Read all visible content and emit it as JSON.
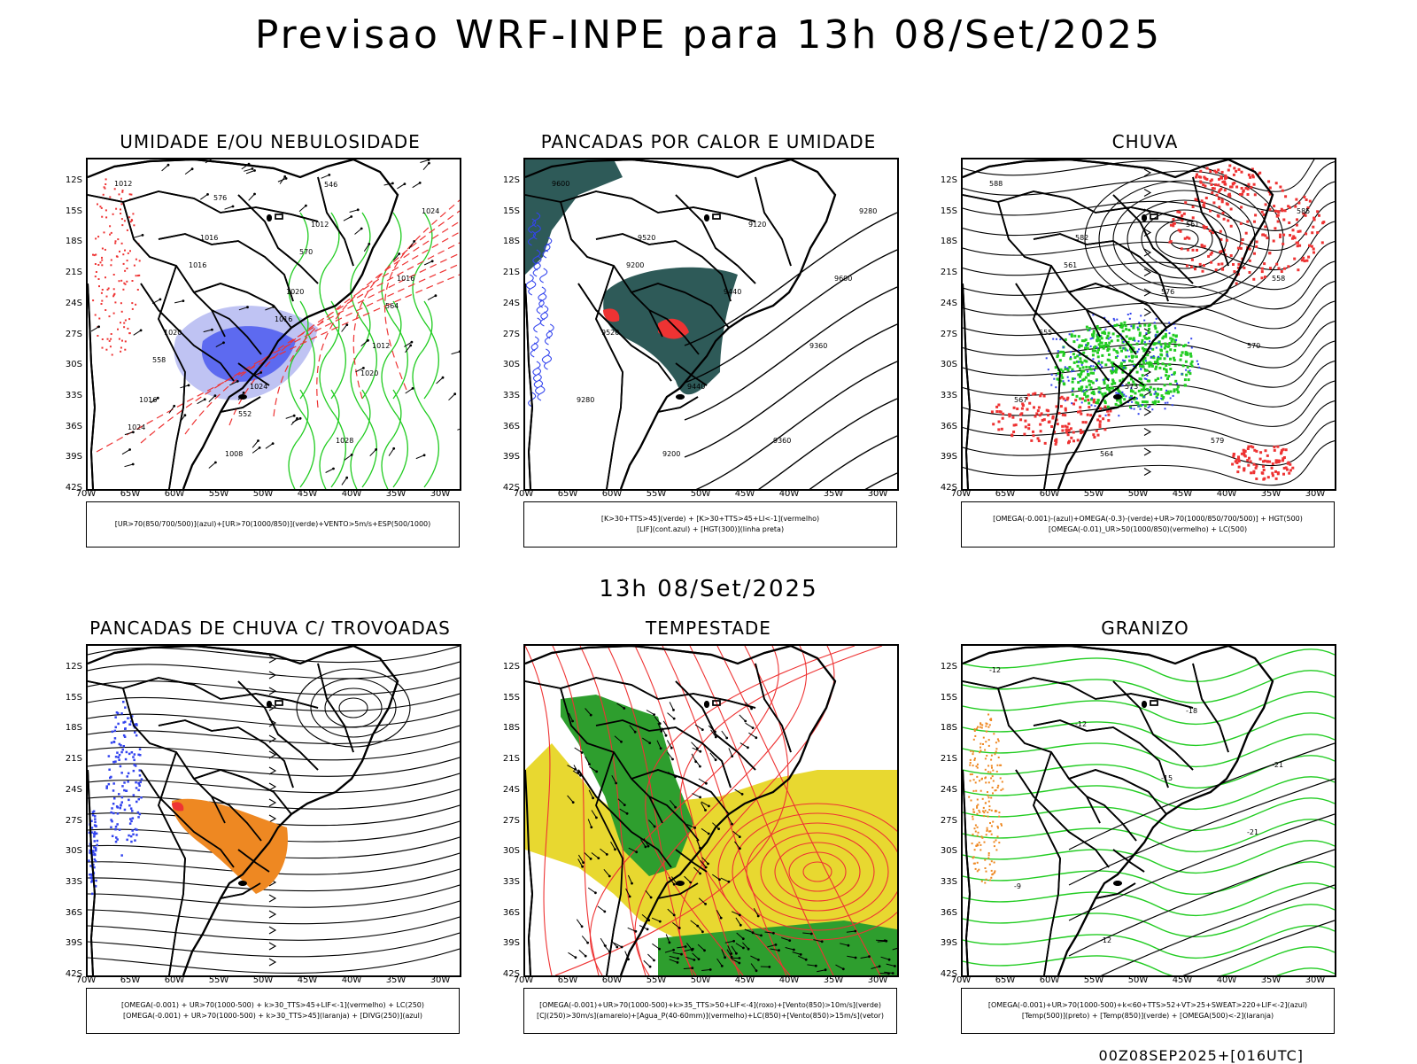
{
  "title": "Previsao WRF-INPE  para 13h 08/Set/2025",
  "mid_time": "13h 08/Set/2025",
  "footer_code": "00Z08SEP2025+[016UTC]",
  "lat_labels": [
    "12S",
    "15S",
    "18S",
    "21S",
    "24S",
    "27S",
    "30S",
    "33S",
    "36S",
    "39S",
    "42S"
  ],
  "lon_labels": [
    "70W",
    "65W",
    "60W",
    "55W",
    "50W",
    "45W",
    "40W",
    "35W",
    "30W"
  ],
  "panels": [
    {
      "title": "UMIDADE E/OU NEBULOSIDADE",
      "legend": [
        "[UR>70(850/700/500)](azul)+[UR>70(1000/850)](verde)+VENTO>5m/s+ESP(500/1000)"
      ],
      "contour_labels": [
        "1012",
        "1016",
        "1020",
        "1012",
        "1016",
        "1008",
        "1012",
        "1016",
        "1020",
        "1024",
        "1028",
        "1024",
        "1016",
        "1016",
        "1020",
        "1024",
        "576",
        "570",
        "564",
        "558",
        "552",
        "546"
      ]
    },
    {
      "title": "PANCADAS POR CALOR E UMIDADE",
      "legend": [
        "[K>30+TTS>45](verde) + [K>30+TTS>45+LI<-1](vermelho)",
        "[LIF](cont.azul) + [HGT(300)](linha preta)"
      ],
      "contour_labels": [
        "9600",
        "9520",
        "9440",
        "9360",
        "9280",
        "9200",
        "9120",
        "9600",
        "9520",
        "9440",
        "9360",
        "9280",
        "9200"
      ]
    },
    {
      "title": "CHUVA",
      "legend": [
        "[OMEGA(-0.001)-(azul)+OMEGA(-0.3)-(verde)+UR>70(1000/850/700/500)] + HGT(500)",
        "[OMEGA(-0.01)_UR>50(1000/850)(vermelho) + LC(500)"
      ],
      "contour_labels": [
        "588",
        "582",
        "576",
        "570",
        "567",
        "564",
        "561",
        "558",
        "555",
        "573",
        "579",
        "585",
        "561"
      ]
    },
    {
      "title": "PANCADAS DE CHUVA C/ TROVOADAS",
      "legend": [
        "[OMEGA(-0.001) + UR>70(1000-500) + k>30_TTS>45+LIF<-1](vermelho) + LC(250)",
        "[OMEGA(-0.001) + UR>70(1000-500) + k>30_TTS>45](laranja) + [DIVG(250)](azul)"
      ],
      "contour_labels": []
    },
    {
      "title": "TEMPESTADE",
      "legend": [
        "[OMEGA(-0.001)+UR>70(1000-500)+k>35_TTS>50+LIF<-4](roxo)+[Vento(850)>10m/s](verde)",
        "[CJ(250)>30m/s](amarelo)+[Agua_P(40-60mm)](vermelho)+LC(850)+[Vento(850)>15m/s](vetor)"
      ],
      "contour_labels": []
    },
    {
      "title": "GRANIZO",
      "legend": [
        "[OMEGA(-0.001)+UR>70(1000-500)+k<60+TTS>52+VT>25+SWEAT>220+LIF<-2](azul)",
        "[Temp(500)](preto) + [Temp(850)](verde) + [OMEGA(500)<-2](laranja)"
      ],
      "contour_labels": [
        "-12",
        "-12",
        "-15",
        "-21",
        "-9",
        "-12",
        "-18",
        "-21"
      ]
    }
  ],
  "colors": {
    "green": "#22cc22",
    "red": "#ee3333",
    "blue": "#3344ee",
    "orange": "#ee8822",
    "yellow": "#e8d830",
    "teal": "#2e5a58",
    "lavender": "#b8bcf2"
  }
}
